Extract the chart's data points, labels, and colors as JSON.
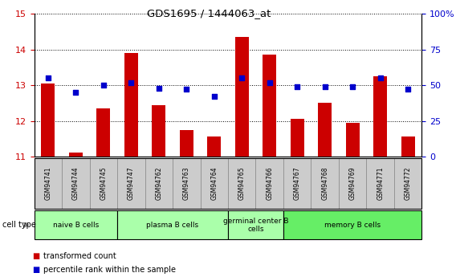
{
  "title": "GDS1695 / 1444063_at",
  "samples": [
    "GSM94741",
    "GSM94744",
    "GSM94745",
    "GSM94747",
    "GSM94762",
    "GSM94763",
    "GSM94764",
    "GSM94765",
    "GSM94766",
    "GSM94767",
    "GSM94768",
    "GSM94769",
    "GSM94771",
    "GSM94772"
  ],
  "transformed_count": [
    13.05,
    11.1,
    12.35,
    13.9,
    12.45,
    11.75,
    11.55,
    14.35,
    13.85,
    12.05,
    12.5,
    11.95,
    13.25,
    11.55
  ],
  "percentile_rank": [
    55,
    45,
    50,
    52,
    48,
    47,
    42,
    55,
    52,
    49,
    49,
    49,
    55,
    47
  ],
  "ylim_left": [
    11,
    15
  ],
  "ylim_right": [
    0,
    100
  ],
  "yticks_left": [
    11,
    12,
    13,
    14,
    15
  ],
  "yticks_right": [
    0,
    25,
    50,
    75,
    100
  ],
  "ytick_labels_right": [
    "0",
    "25",
    "50",
    "75",
    "100%"
  ],
  "bar_color": "#cc0000",
  "dot_color": "#0000cc",
  "cell_type_groups": [
    {
      "label": "naive B cells",
      "start": 0,
      "end": 3,
      "color": "#aaffaa"
    },
    {
      "label": "plasma B cells",
      "start": 3,
      "end": 7,
      "color": "#aaffaa"
    },
    {
      "label": "germinal center B\ncells",
      "start": 7,
      "end": 9,
      "color": "#aaffaa"
    },
    {
      "label": "memory B cells",
      "start": 9,
      "end": 14,
      "color": "#66ee66"
    }
  ],
  "sample_box_color": "#cccccc",
  "legend_bar_label": "transformed count",
  "legend_dot_label": "percentile rank within the sample",
  "background_color": "#ffffff",
  "tick_label_color_left": "#cc0000",
  "tick_label_color_right": "#0000cc"
}
